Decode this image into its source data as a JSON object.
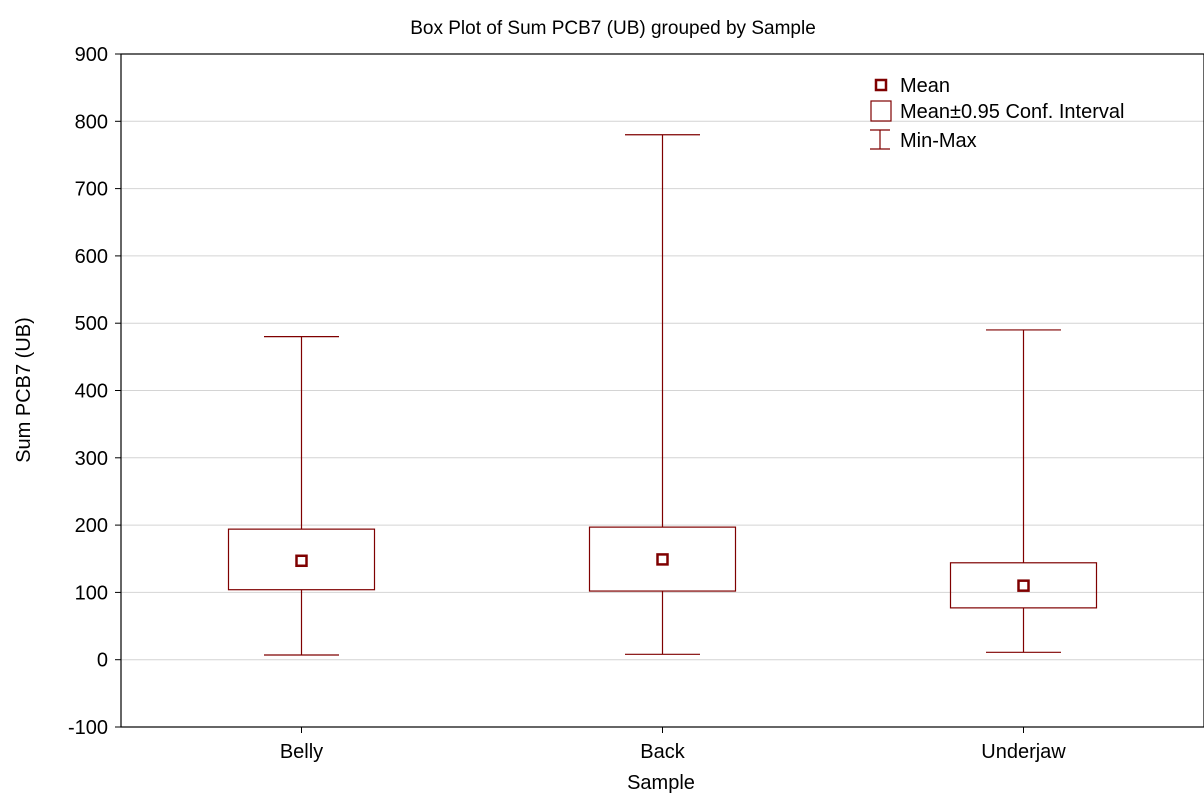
{
  "chart_data": {
    "type": "box",
    "title": "Box Plot of Sum PCB7 (UB) grouped by  Sample",
    "xlabel": "Sample",
    "ylabel": "Sum PCB7 (UB)",
    "ylim": [
      -100,
      900
    ],
    "yticks": [
      -100,
      0,
      100,
      200,
      300,
      400,
      500,
      600,
      700,
      800,
      900
    ],
    "grid": true,
    "color": "#7f0000",
    "legend_position": "top-right",
    "legend": {
      "mean": "Mean",
      "ci": "Mean±0.95 Conf. Interval",
      "minmax": "Min-Max"
    },
    "categories": [
      "Belly",
      "Back",
      "Underjaw"
    ],
    "boxes": [
      {
        "category": "Belly",
        "mean": 147,
        "ci_low": 104,
        "ci_high": 194,
        "min": 7,
        "max": 480
      },
      {
        "category": "Back",
        "mean": 149,
        "ci_low": 102,
        "ci_high": 197,
        "min": 8,
        "max": 780
      },
      {
        "category": "Underjaw",
        "mean": 110,
        "ci_low": 77,
        "ci_high": 144,
        "min": 11,
        "max": 490
      }
    ]
  }
}
